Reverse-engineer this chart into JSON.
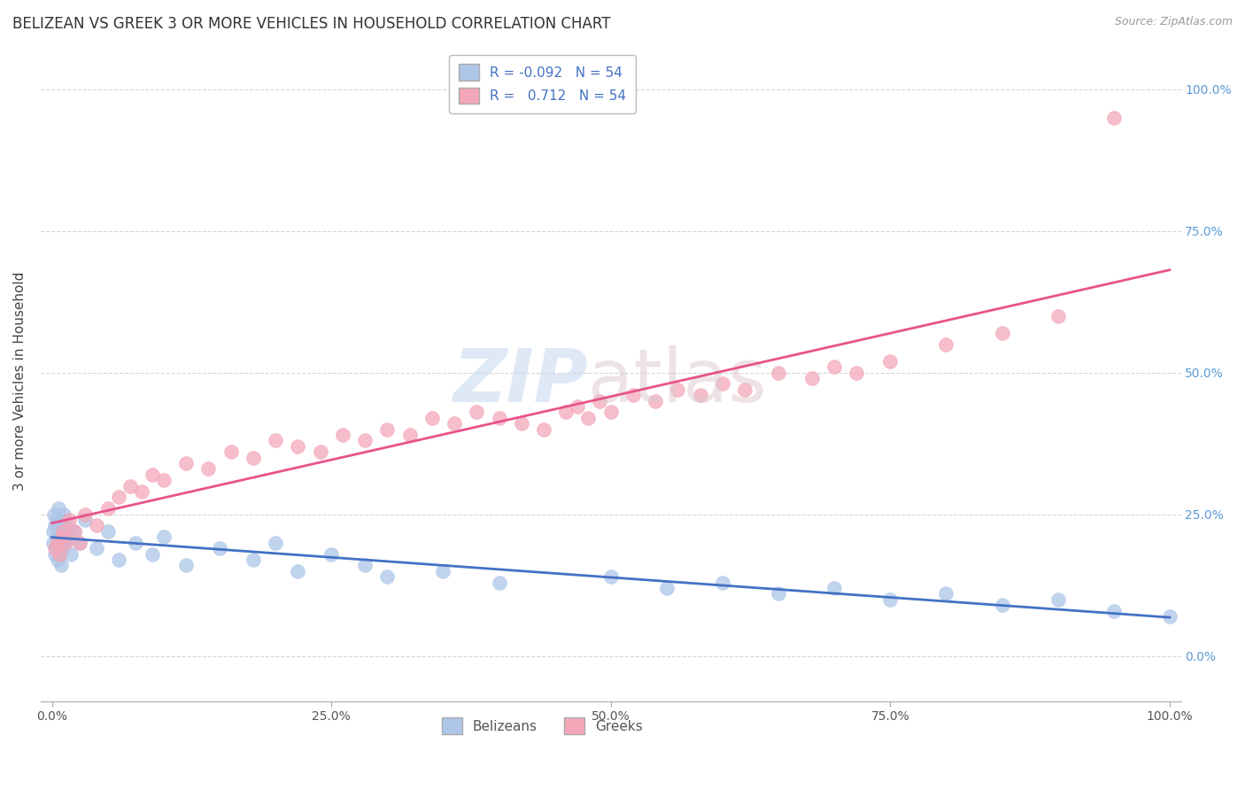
{
  "title": "BELIZEAN VS GREEK 3 OR MORE VEHICLES IN HOUSEHOLD CORRELATION CHART",
  "source": "Source: ZipAtlas.com",
  "ylabel": "3 or more Vehicles in Household",
  "belizean_R": -0.092,
  "greek_R": 0.712,
  "N": 54,
  "belizean_color": "#adc6e8",
  "greek_color": "#f4a7b9",
  "belizean_line_color": "#4472c4",
  "greek_line_color": "#e8538b",
  "background_color": "#ffffff",
  "belizean_x": [
    0.1,
    0.15,
    0.2,
    0.25,
    0.3,
    0.35,
    0.4,
    0.45,
    0.5,
    0.55,
    0.6,
    0.65,
    0.7,
    0.75,
    0.8,
    0.85,
    0.9,
    0.95,
    1.0,
    1.1,
    1.2,
    1.3,
    1.5,
    1.7,
    2.0,
    2.5,
    3.0,
    4.0,
    5.0,
    6.0,
    7.5,
    9.0,
    10.0,
    12.0,
    15.0,
    18.0,
    20.0,
    22.0,
    25.0,
    28.0,
    30.0,
    35.0,
    40.0,
    50.0,
    55.0,
    60.0,
    65.0,
    70.0,
    75.0,
    80.0,
    85.0,
    90.0,
    95.0,
    100.0
  ],
  "belizean_y": [
    22.0,
    20.0,
    25.0,
    18.0,
    23.0,
    19.0,
    21.0,
    24.0,
    17.0,
    22.0,
    26.0,
    20.0,
    18.0,
    23.0,
    16.0,
    21.0,
    24.0,
    19.0,
    22.0,
    25.0,
    20.0,
    23.0,
    21.0,
    18.0,
    22.0,
    20.0,
    24.0,
    19.0,
    22.0,
    17.0,
    20.0,
    18.0,
    21.0,
    16.0,
    19.0,
    17.0,
    20.0,
    15.0,
    18.0,
    16.0,
    14.0,
    15.0,
    13.0,
    14.0,
    12.0,
    13.0,
    11.0,
    12.0,
    10.0,
    11.0,
    9.0,
    10.0,
    8.0,
    7.0
  ],
  "greek_x": [
    0.3,
    0.5,
    0.7,
    0.9,
    1.0,
    1.2,
    1.5,
    2.0,
    2.5,
    3.0,
    4.0,
    5.0,
    6.0,
    7.0,
    8.0,
    9.0,
    10.0,
    12.0,
    14.0,
    16.0,
    18.0,
    20.0,
    22.0,
    24.0,
    26.0,
    28.0,
    30.0,
    32.0,
    34.0,
    36.0,
    38.0,
    40.0,
    42.0,
    44.0,
    46.0,
    47.0,
    48.0,
    49.0,
    50.0,
    52.0,
    54.0,
    56.0,
    58.0,
    60.0,
    62.0,
    65.0,
    68.0,
    70.0,
    72.0,
    75.0,
    80.0,
    85.0,
    90.0,
    95.0
  ],
  "greek_y": [
    19.0,
    20.0,
    18.0,
    21.0,
    22.0,
    20.0,
    24.0,
    22.0,
    20.0,
    25.0,
    23.0,
    26.0,
    28.0,
    30.0,
    29.0,
    32.0,
    31.0,
    34.0,
    33.0,
    36.0,
    35.0,
    38.0,
    37.0,
    36.0,
    39.0,
    38.0,
    40.0,
    39.0,
    42.0,
    41.0,
    43.0,
    42.0,
    41.0,
    40.0,
    43.0,
    44.0,
    42.0,
    45.0,
    43.0,
    46.0,
    45.0,
    47.0,
    46.0,
    48.0,
    47.0,
    50.0,
    49.0,
    51.0,
    50.0,
    52.0,
    55.0,
    57.0,
    60.0,
    95.0
  ]
}
